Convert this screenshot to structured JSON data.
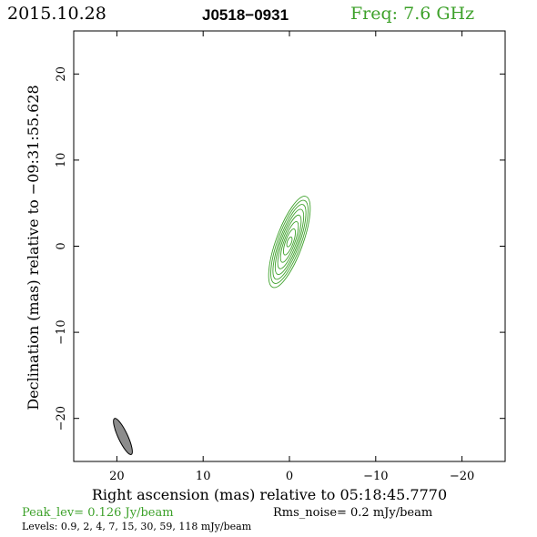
{
  "header": {
    "date": "2015.10.28",
    "source": "J0518−0931",
    "freq": "Freq: 7.6 GHz"
  },
  "colors": {
    "contour": "#3da12a",
    "beam_fill": "#8c8c8c",
    "text": "#000000"
  },
  "chart_data": {
    "type": "contour",
    "xlabel": "Right ascension (mas) relative to 05:18:45.7770",
    "ylabel": "Declination (mas) relative to −09:31:55.628",
    "xlim": [
      25,
      -25
    ],
    "ylim": [
      -25,
      25
    ],
    "x_ticks": [
      20,
      10,
      0,
      -10,
      -20
    ],
    "y_ticks": [
      20,
      10,
      0,
      -10,
      -20
    ],
    "x_tick_labels": [
      "20",
      "10",
      "0",
      "−10",
      "−20"
    ],
    "y_tick_labels": [
      "20",
      "10",
      "0",
      "−10",
      "−20"
    ],
    "contour_center": [
      0,
      0.5
    ],
    "contour_position_angle_deg": 20,
    "contours": [
      {
        "level": 0.9,
        "major": 5.6,
        "minor": 1.55
      },
      {
        "level": 2,
        "major": 5.1,
        "minor": 1.35
      },
      {
        "level": 4,
        "major": 4.6,
        "minor": 1.15
      },
      {
        "level": 7,
        "major": 4.0,
        "minor": 0.98
      },
      {
        "level": 15,
        "major": 3.3,
        "minor": 0.8
      },
      {
        "level": 30,
        "major": 2.5,
        "minor": 0.62
      },
      {
        "level": 59,
        "major": 1.6,
        "minor": 0.45
      },
      {
        "level": 118,
        "major": 0.6,
        "minor": 0.25
      }
    ],
    "beam": {
      "x": 19.3,
      "y": -22.1,
      "major": 2.3,
      "minor": 0.55,
      "position_angle_deg": 25
    }
  },
  "footer": {
    "peak": "Peak_lev=  0.126 Jy/beam",
    "rms": "Rms_noise=   0.2 mJy/beam",
    "levels": "Levels: 0.9,   2,   4,   7,  15,  30,  59, 118 mJy/beam"
  }
}
